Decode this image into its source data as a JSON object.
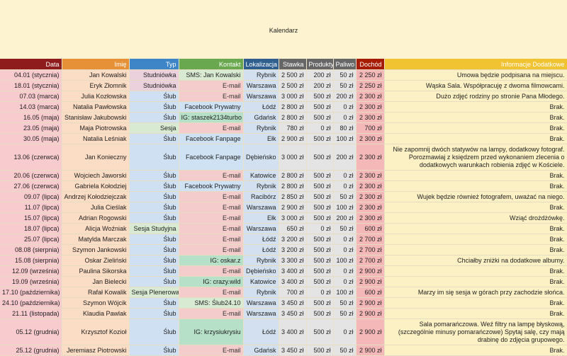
{
  "title": "Kalendarz",
  "headers": {
    "data": "Data",
    "imie": "Imię",
    "typ": "Typ",
    "kontakt": "Kontakt",
    "lokalizacja": "Lokalizacja",
    "stawka": "Stawka",
    "produkty": "Produkty",
    "paliwo": "Paliwo",
    "dochod": "Dochód",
    "info": "Informacje Dodatkowe"
  },
  "rows": [
    {
      "data": "04.01 (stycznia)",
      "imie": "Jan Kowalski",
      "typ": "Studniówka",
      "kontakt": "SMS: Jan Kowalski",
      "kontakt_kind": "sms",
      "lok": "Rybnik",
      "stawka": "2 500 zł",
      "prod": "200 zł",
      "pal": "50 zł",
      "doch": "2 250 zł",
      "info": "Umowa będzie podpisana na miejscu."
    },
    {
      "data": "18.01 (stycznia)",
      "imie": "Eryk Złomnik",
      "typ": "Studniówka",
      "kontakt": "E-mail",
      "kontakt_kind": "email",
      "lok": "Warszawa",
      "stawka": "2 500 zł",
      "prod": "200 zł",
      "pal": "50 zł",
      "doch": "2 250 zł",
      "info": "Wąska Sala. Współpracuję z dwoma filmowcami."
    },
    {
      "data": "07.03 (marca)",
      "imie": "Julia Kozłowska",
      "typ": "Ślub",
      "kontakt": "E-mail",
      "kontakt_kind": "email",
      "lok": "Warszawa",
      "stawka": "3 000 zł",
      "prod": "500 zł",
      "pal": "200 zł",
      "doch": "2 300 zł",
      "info": "Dużo zdjęć rodziny po stronie Pana Młodego."
    },
    {
      "data": "14.03 (marca)",
      "imie": "Natalia Pawłowska",
      "typ": "Ślub",
      "kontakt": "Facebook Prywatny",
      "kontakt_kind": "fb",
      "lok": "Łódź",
      "stawka": "2 800 zł",
      "prod": "500 zł",
      "pal": "0 zł",
      "doch": "2 300 zł",
      "info": "Brak."
    },
    {
      "data": "16.05 (maja)",
      "imie": "Stanisław Jakubowski",
      "typ": "Ślub",
      "kontakt": "IG: staszek2134turbo",
      "kontakt_kind": "ig",
      "lok": "Gdańsk",
      "stawka": "2 800 zł",
      "prod": "500 zł",
      "pal": "0 zł",
      "doch": "2 300 zł",
      "info": "Brak."
    },
    {
      "data": "23.05 (maja)",
      "imie": "Maja Piotrowska",
      "typ": "Sesja",
      "kontakt": "E-mail",
      "kontakt_kind": "email",
      "lok": "Rybnik",
      "stawka": "780 zł",
      "prod": "0 zł",
      "pal": "80 zł",
      "doch": "700 zł",
      "info": "Brak."
    },
    {
      "data": "30.05 (maja)",
      "imie": "Natalia Leśniak",
      "typ": "Ślub",
      "kontakt": "Facebook Fanpage",
      "kontakt_kind": "fb",
      "lok": "Ełk",
      "stawka": "2 900 zł",
      "prod": "500 zł",
      "pal": "100 zł",
      "doch": "2 300 zł",
      "info": "Brak."
    },
    {
      "data": "13.06 (czerwca)",
      "imie": "Jan Konieczny",
      "typ": "Ślub",
      "kontakt": "Facebook Fanpage",
      "kontakt_kind": "fb",
      "lok": "Dębieńsko",
      "stawka": "3 000 zł",
      "prod": "500 zł",
      "pal": "200 zł",
      "doch": "2 300 zł",
      "info": "Nie zapomnij dwóch statywów na lampy, dodatkowy fotograf. Porozmawiaj z księdzem przed wykonaniem zlecenia o dodatkowych warunkach robienia zdjęć w Kościele.",
      "tall": true
    },
    {
      "data": "20.06 (czerwca)",
      "imie": "Wojciech Jaworski",
      "typ": "Ślub",
      "kontakt": "E-mail",
      "kontakt_kind": "email",
      "lok": "Katowice",
      "stawka": "2 800 zł",
      "prod": "500 zł",
      "pal": "0 zł",
      "doch": "2 300 zł",
      "info": "Brak."
    },
    {
      "data": "27.06 (czerwca)",
      "imie": "Gabriela Kołodziej",
      "typ": "Ślub",
      "kontakt": "Facebook Prywatny",
      "kontakt_kind": "fb",
      "lok": "Rybnik",
      "stawka": "2 800 zł",
      "prod": "500 zł",
      "pal": "0 zł",
      "doch": "2 300 zł",
      "info": "Brak."
    },
    {
      "data": "09.07 (lipca)",
      "imie": "Andrzej Kołodziejczak",
      "typ": "Ślub",
      "kontakt": "E-mail",
      "kontakt_kind": "email",
      "lok": "Racibórz",
      "stawka": "2 850 zł",
      "prod": "500 zł",
      "pal": "50 zł",
      "doch": "2 300 zł",
      "info": "Wujek będzie również fotografem, uważać na niego."
    },
    {
      "data": "11.07 (lipca)",
      "imie": "Julia Cieślak",
      "typ": "Ślub",
      "kontakt": "E-mail",
      "kontakt_kind": "email",
      "lok": "Warszawa",
      "stawka": "2 900 zł",
      "prod": "500 zł",
      "pal": "100 zł",
      "doch": "2 300 zł",
      "info": "Brak."
    },
    {
      "data": "15.07 (lipca)",
      "imie": "Adrian Rogowski",
      "typ": "Ślub",
      "kontakt": "E-mail",
      "kontakt_kind": "email",
      "lok": "Ełk",
      "stawka": "3 000 zł",
      "prod": "500 zł",
      "pal": "200 zł",
      "doch": "2 300 zł",
      "info": "Wziąć drożdżówkę."
    },
    {
      "data": "18.07 (lipca)",
      "imie": "Alicja Woźniak",
      "typ": "Sesja Studyjna",
      "kontakt": "E-mail",
      "kontakt_kind": "email",
      "lok": "Warszawa",
      "stawka": "650 zł",
      "prod": "0 zł",
      "pal": "50 zł",
      "doch": "600 zł",
      "info": "Brak."
    },
    {
      "data": "25.07 (lipca)",
      "imie": "Matylda Marczak",
      "typ": "Ślub",
      "kontakt": "E-mail",
      "kontakt_kind": "email",
      "lok": "Łódź",
      "stawka": "3 200 zł",
      "prod": "500 zł",
      "pal": "0 zł",
      "doch": "2 700 zł",
      "info": "Brak."
    },
    {
      "data": "08.08 (sierpnia)",
      "imie": "Szymon Jankowski",
      "typ": "Ślub",
      "kontakt": "E-mail",
      "kontakt_kind": "email",
      "lok": "Łódź",
      "stawka": "3 200 zł",
      "prod": "500 zł",
      "pal": "0 zł",
      "doch": "2 700 zł",
      "info": "Brak."
    },
    {
      "data": "15.08 (sierpnia)",
      "imie": "Oskar Zieliński",
      "typ": "Ślub",
      "kontakt": "IG: oskar.z",
      "kontakt_kind": "ig",
      "lok": "Rybnik",
      "stawka": "3 300 zł",
      "prod": "500 zł",
      "pal": "100 zł",
      "doch": "2 700 zł",
      "info": "Chciałby zniżki na dodatkowe albumy."
    },
    {
      "data": "12.09 (września)",
      "imie": "Paulina Sikorska",
      "typ": "Ślub",
      "kontakt": "E-mail",
      "kontakt_kind": "email",
      "lok": "Dębieńsko",
      "stawka": "3 400 zł",
      "prod": "500 zł",
      "pal": "0 zł",
      "doch": "2 900 zł",
      "info": "Brak."
    },
    {
      "data": "19.09 (września)",
      "imie": "Jan Bielecki",
      "typ": "Ślub",
      "kontakt": "IG: crazy.wild",
      "kontakt_kind": "ig",
      "lok": "Katowice",
      "stawka": "3 400 zł",
      "prod": "500 zł",
      "pal": "0 zł",
      "doch": "2 900 zł",
      "info": "Brak."
    },
    {
      "data": "17.10 (października)",
      "imie": "Rafał Kowalik",
      "typ": "Sesja Plenerowa",
      "kontakt": "E-mail",
      "kontakt_kind": "email",
      "lok": "Rybnik",
      "stawka": "700 zł",
      "prod": "0 zł",
      "pal": "100 zł",
      "doch": "600 zł",
      "info": "Marzy im się sesja w górach przy zachodzie słońca."
    },
    {
      "data": "24.10 (października)",
      "imie": "Szymon Wójcik",
      "typ": "Ślub",
      "kontakt": "SMS: Ślub24.10",
      "kontakt_kind": "sms",
      "lok": "Warszawa",
      "stawka": "3 450 zł",
      "prod": "500 zł",
      "pal": "50 zł",
      "doch": "2 900 zł",
      "info": "Brak."
    },
    {
      "data": "21.11 (listopada)",
      "imie": "Klaudia Pawlak",
      "typ": "Ślub",
      "kontakt": "E-mail",
      "kontakt_kind": "email",
      "lok": "Warszawa",
      "stawka": "3 450 zł",
      "prod": "500 zł",
      "pal": "50 zł",
      "doch": "2 900 zł",
      "info": "Brak."
    },
    {
      "data": "05.12 (grudnia)",
      "imie": "Krzysztof Kozioł",
      "typ": "Ślub",
      "kontakt": "IG: krzysiukrysiu",
      "kontakt_kind": "ig",
      "lok": "Łódź",
      "stawka": "3 400 zł",
      "prod": "500 zł",
      "pal": "0 zł",
      "doch": "2 900 zł",
      "info": "Sala pomarańczowa. Weź filtry na lampę błyskową, (szczególnie minusy pomarańczowe) Spytaj salę, czy mają drabinę do zdjęcia grupowego.",
      "tall": true
    },
    {
      "data": "25.12 (grudnia)",
      "imie": "Jeremiasz Piotrowski",
      "typ": "Ślub",
      "kontakt": "E-mail",
      "kontakt_kind": "email",
      "lok": "Gdańsk",
      "stawka": "3 450 zł",
      "prod": "500 zł",
      "pal": "50 zł",
      "doch": "2 900 zł",
      "info": "Brak."
    }
  ]
}
